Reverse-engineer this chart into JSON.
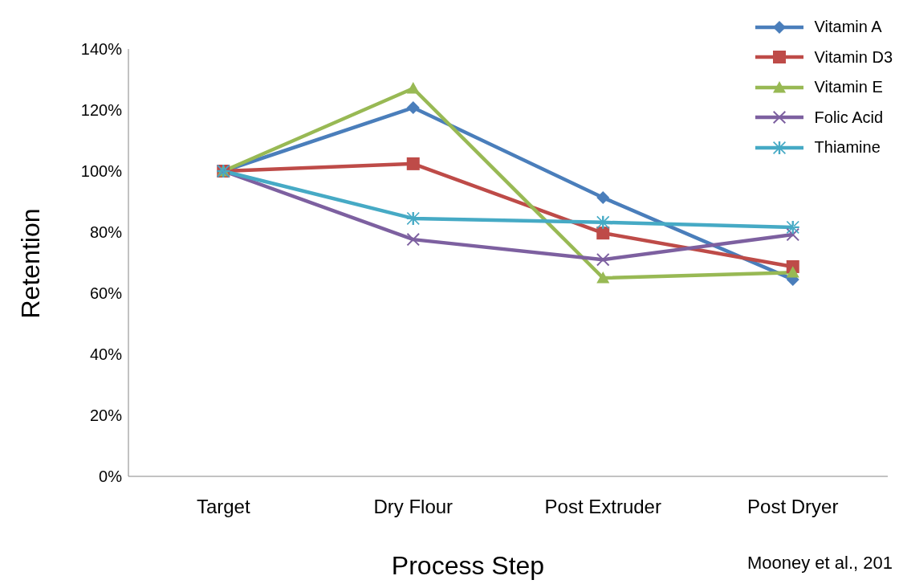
{
  "chart_data": {
    "type": "line",
    "xlabel": "Process Step",
    "ylabel": "Retention",
    "categories": [
      "Target",
      "Dry Flour",
      "Post Extruder",
      "Post Dryer"
    ],
    "series": [
      {
        "name": "Vitamin A",
        "color": "#4a7ebb",
        "marker": "diamond",
        "values": [
          100,
          120.8,
          91.3,
          64.5
        ]
      },
      {
        "name": "Vitamin D3",
        "color": "#be4b48",
        "marker": "square",
        "values": [
          100,
          102.4,
          79.7,
          68.7
        ]
      },
      {
        "name": "Vitamin E",
        "color": "#98b954",
        "marker": "triangle",
        "values": [
          100,
          127.1,
          65,
          66.8
        ]
      },
      {
        "name": "Folic Acid",
        "color": "#7d60a0",
        "marker": "cross",
        "values": [
          100,
          77.6,
          71,
          79.2
        ]
      },
      {
        "name": "Thiamine",
        "color": "#46aac5",
        "marker": "star",
        "values": [
          100,
          84.5,
          83.2,
          81.6
        ]
      }
    ],
    "ylim": [
      0,
      140
    ],
    "yticks": [
      {
        "value": 0,
        "label": "0%"
      },
      {
        "value": 20,
        "label": "20%"
      },
      {
        "value": 40,
        "label": "40%"
      },
      {
        "value": 60,
        "label": "60%"
      },
      {
        "value": 80,
        "label": "80%"
      },
      {
        "value": 100,
        "label": "100%"
      },
      {
        "value": 120,
        "label": "120%"
      },
      {
        "value": 140,
        "label": "140%"
      }
    ],
    "grid": false,
    "legend": "top right",
    "line_style": "solid",
    "annotations": [
      "Mooney et al., 201"
    ]
  }
}
